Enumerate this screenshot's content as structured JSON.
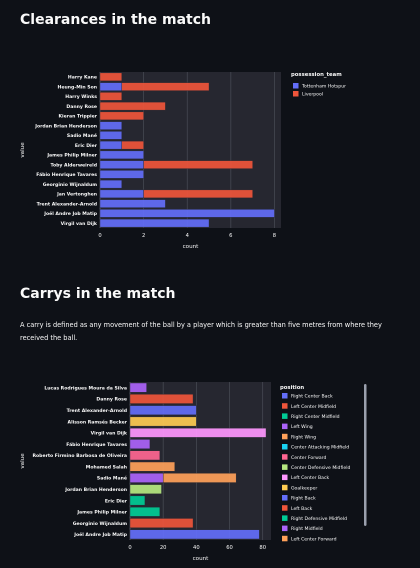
{
  "section1": {
    "title": "Clearances in the match"
  },
  "section2": {
    "title": "Carrys in the match",
    "description": "A carry is defined as any movement of the ball by a player which is greater than five metres from where they received the ball."
  },
  "chart_data": [
    {
      "type": "bar",
      "orientation": "horizontal",
      "barmode": "stack",
      "xlabel": "count",
      "ylabel": "value",
      "xlim": [
        0,
        8.3
      ],
      "xticks": [
        0,
        2,
        4,
        6,
        8
      ],
      "legend_title": "possession_team",
      "legend_position": "top-right",
      "categories": [
        "Harry Kane",
        "Heung-Min Son",
        "Harry Winks",
        "Danny Rose",
        "Kieran Trippier",
        "Jordan Brian Henderson",
        "Sadio Mané",
        "Eric Dier",
        "James Philip Milner",
        "Toby Alderweireld",
        "Fábio Henrique Tavares",
        "Georginio Wijnaldum",
        "Jan Vertonghen",
        "Trent Alexander-Arnold",
        "Joël Andre Job Matip",
        "Virgil van Dijk"
      ],
      "series": [
        {
          "name": "Tottenham Hotspur",
          "color": "#636efa",
          "values": [
            0,
            1,
            0,
            0,
            0,
            1,
            1,
            1,
            2,
            2,
            2,
            1,
            2,
            3,
            8,
            5
          ]
        },
        {
          "name": "Liverpool",
          "color": "#ef553b",
          "values": [
            1,
            4,
            1,
            3,
            2,
            0,
            0,
            1,
            0,
            5,
            0,
            0,
            5,
            0,
            0,
            0
          ]
        }
      ]
    },
    {
      "type": "bar",
      "orientation": "horizontal",
      "barmode": "stack",
      "xlabel": "count",
      "ylabel": "value",
      "xlim": [
        0,
        85
      ],
      "xticks": [
        0,
        20,
        40,
        60,
        80
      ],
      "legend_title": "position",
      "legend_position": "right",
      "categories": [
        "Lucas Rodrigues Moura da Silva",
        "Danny Rose",
        "Trent Alexander-Arnold",
        "Alisson Ramsés Becker",
        "Virgil van Dijk",
        "Fábio Henrique Tavares",
        "Roberto Firmino Barbosa de Oliveira",
        "Mohamed Salah",
        "Sadio Mané",
        "Jordan Brian Henderson",
        "Eric Dier",
        "James Philip Milner",
        "Georginio Wijnaldum",
        "Joël Andre Job Matip"
      ],
      "positions": [
        "Right Center Back",
        "Left Center Midfield",
        "Right Center Midfield",
        "Left Wing",
        "Right Wing",
        "Center Attacking Midfield",
        "Center Forward",
        "Center Defensive Midfield",
        "Left Center Back",
        "Goalkeeper",
        "Right Back",
        "Left Back",
        "Right Defensive Midfield",
        "Right Midfield",
        "Left Center Forward"
      ],
      "colors": [
        "#636efa",
        "#ef553b",
        "#00cc96",
        "#ab63fa",
        "#ffa15a",
        "#19d3f3",
        "#ff6692",
        "#b6e880",
        "#ff97ff",
        "#fecb52",
        "#636efa",
        "#ef553b",
        "#00cc96",
        "#ab63fa",
        "#ffa15a"
      ],
      "series": [
        {
          "name": "Right Center Back",
          "values": [
            0,
            0,
            0,
            0,
            0,
            0,
            0,
            0,
            0,
            0,
            0,
            0,
            0,
            78
          ]
        },
        {
          "name": "Left Center Midfield",
          "values": [
            0,
            0,
            0,
            0,
            0,
            0,
            0,
            0,
            0,
            0,
            0,
            0,
            38,
            0
          ]
        },
        {
          "name": "Right Center Midfield",
          "values": [
            0,
            0,
            0,
            0,
            0,
            0,
            0,
            0,
            0,
            0,
            0,
            18,
            0,
            0
          ]
        },
        {
          "name": "Left Wing",
          "values": [
            10,
            0,
            0,
            0,
            0,
            0,
            0,
            0,
            20,
            0,
            0,
            0,
            0,
            0
          ]
        },
        {
          "name": "Right Wing",
          "values": [
            0,
            0,
            0,
            0,
            0,
            0,
            0,
            27,
            0,
            0,
            0,
            0,
            0,
            0
          ]
        },
        {
          "name": "Center Attacking Midfield",
          "values": [
            0,
            0,
            0,
            0,
            0,
            0,
            0,
            0,
            0,
            0,
            0,
            0,
            0,
            0
          ]
        },
        {
          "name": "Center Forward",
          "values": [
            0,
            0,
            0,
            0,
            0,
            0,
            18,
            0,
            0,
            0,
            0,
            0,
            0,
            0
          ]
        },
        {
          "name": "Center Defensive Midfield",
          "values": [
            0,
            0,
            0,
            0,
            0,
            0,
            0,
            0,
            0,
            19,
            0,
            0,
            0,
            0
          ]
        },
        {
          "name": "Left Center Back",
          "values": [
            0,
            0,
            0,
            0,
            82,
            0,
            0,
            0,
            0,
            0,
            0,
            0,
            0,
            0
          ]
        },
        {
          "name": "Goalkeeper",
          "values": [
            0,
            0,
            0,
            40,
            0,
            0,
            0,
            0,
            0,
            0,
            0,
            0,
            0,
            0
          ]
        },
        {
          "name": "Right Back",
          "values": [
            0,
            0,
            40,
            0,
            0,
            0,
            0,
            0,
            0,
            0,
            0,
            0,
            0,
            0
          ]
        },
        {
          "name": "Left Back",
          "values": [
            0,
            38,
            0,
            0,
            0,
            0,
            0,
            0,
            0,
            0,
            0,
            0,
            0,
            0
          ]
        },
        {
          "name": "Right Defensive Midfield",
          "values": [
            0,
            0,
            0,
            0,
            0,
            0,
            0,
            0,
            0,
            0,
            9,
            0,
            0,
            0
          ]
        },
        {
          "name": "Right Midfield",
          "values": [
            0,
            0,
            0,
            0,
            0,
            12,
            0,
            0,
            0,
            0,
            0,
            0,
            0,
            0
          ]
        },
        {
          "name": "Left Center Forward",
          "values": [
            0,
            0,
            0,
            0,
            0,
            0,
            0,
            0,
            44,
            0,
            0,
            0,
            0,
            0
          ]
        }
      ]
    }
  ]
}
